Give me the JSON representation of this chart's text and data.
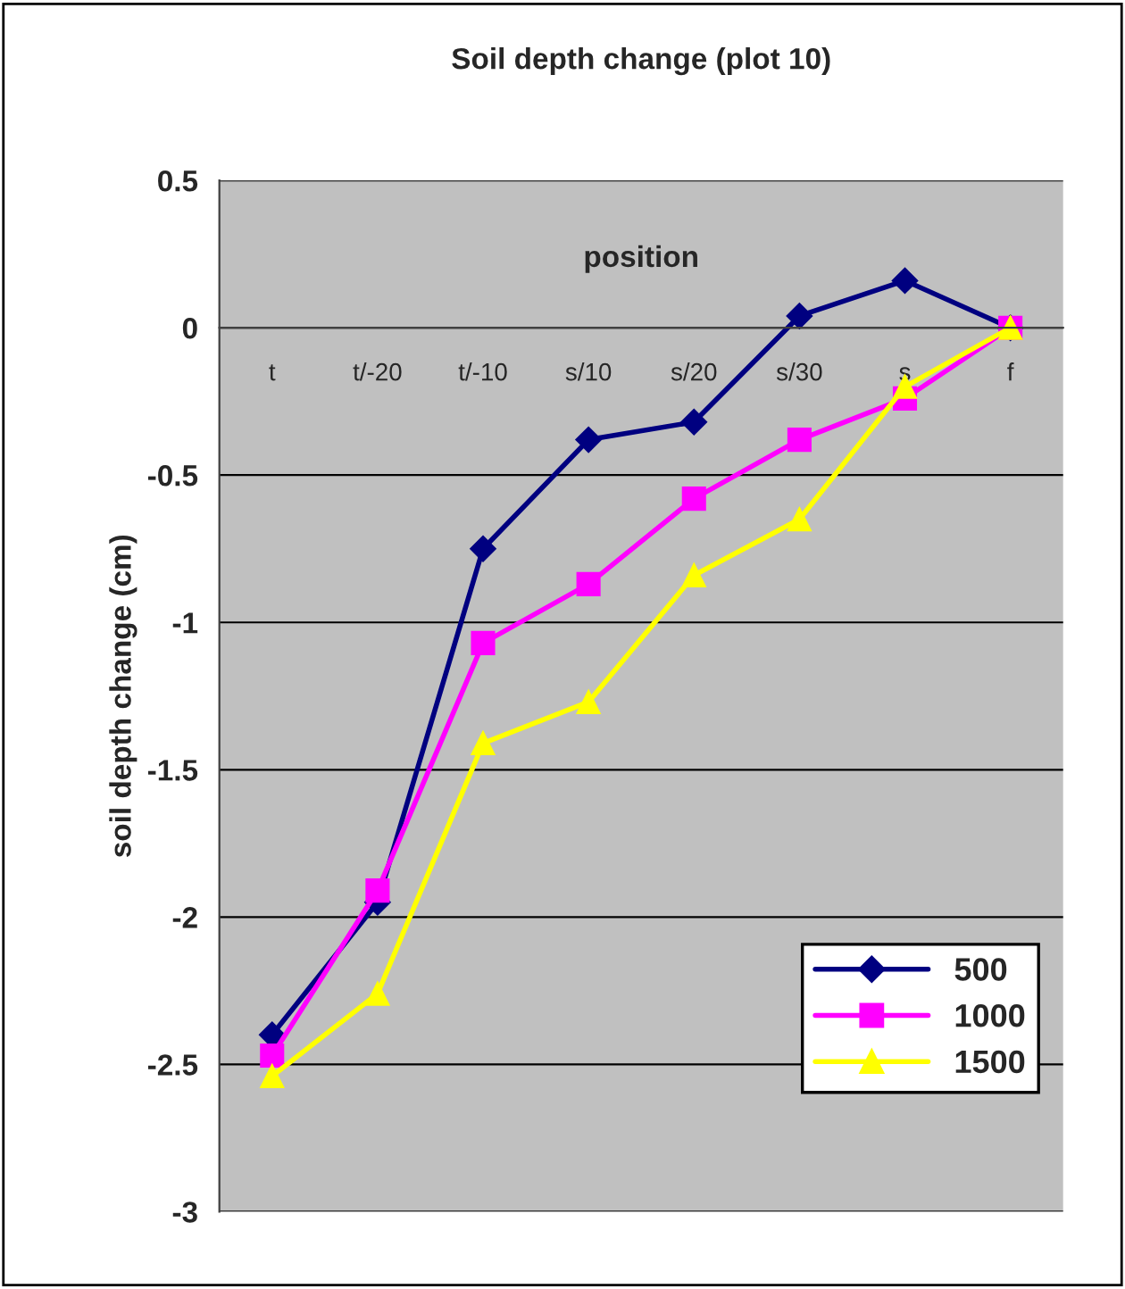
{
  "chart_data": {
    "type": "line",
    "title": "Soil depth change (plot 10)",
    "xlabel": "position",
    "ylabel": "soil depth change (cm)",
    "categories": [
      "t",
      "t/-20",
      "t/-10",
      "s/10",
      "s/20",
      "s/30",
      "s",
      "f"
    ],
    "series": [
      {
        "name": "500",
        "color": "#000080",
        "marker": "diamond",
        "values": [
          -2.4,
          -1.95,
          -0.75,
          -0.38,
          -0.32,
          0.04,
          0.16,
          0
        ]
      },
      {
        "name": "1000",
        "color": "#ff00ff",
        "marker": "square",
        "values": [
          -2.47,
          -1.91,
          -1.07,
          -0.87,
          -0.58,
          -0.38,
          -0.24,
          0
        ]
      },
      {
        "name": "1500",
        "color": "#ffff00",
        "marker": "triangle",
        "values": [
          -2.54,
          -2.26,
          -1.41,
          -1.27,
          -0.84,
          -0.65,
          -0.2,
          0
        ]
      }
    ],
    "ylim": [
      -3,
      0.5
    ],
    "yticks": [
      {
        "value": -3,
        "label": "-3"
      },
      {
        "value": -2.5,
        "label": "-2.5"
      },
      {
        "value": -2,
        "label": "-2"
      },
      {
        "value": -1.5,
        "label": "-1.5"
      },
      {
        "value": -1,
        "label": "-1"
      },
      {
        "value": -0.5,
        "label": "-0.5"
      },
      0,
      0.5
    ],
    "grid": "y",
    "legend": "bottom right",
    "line_style": "solid"
  }
}
